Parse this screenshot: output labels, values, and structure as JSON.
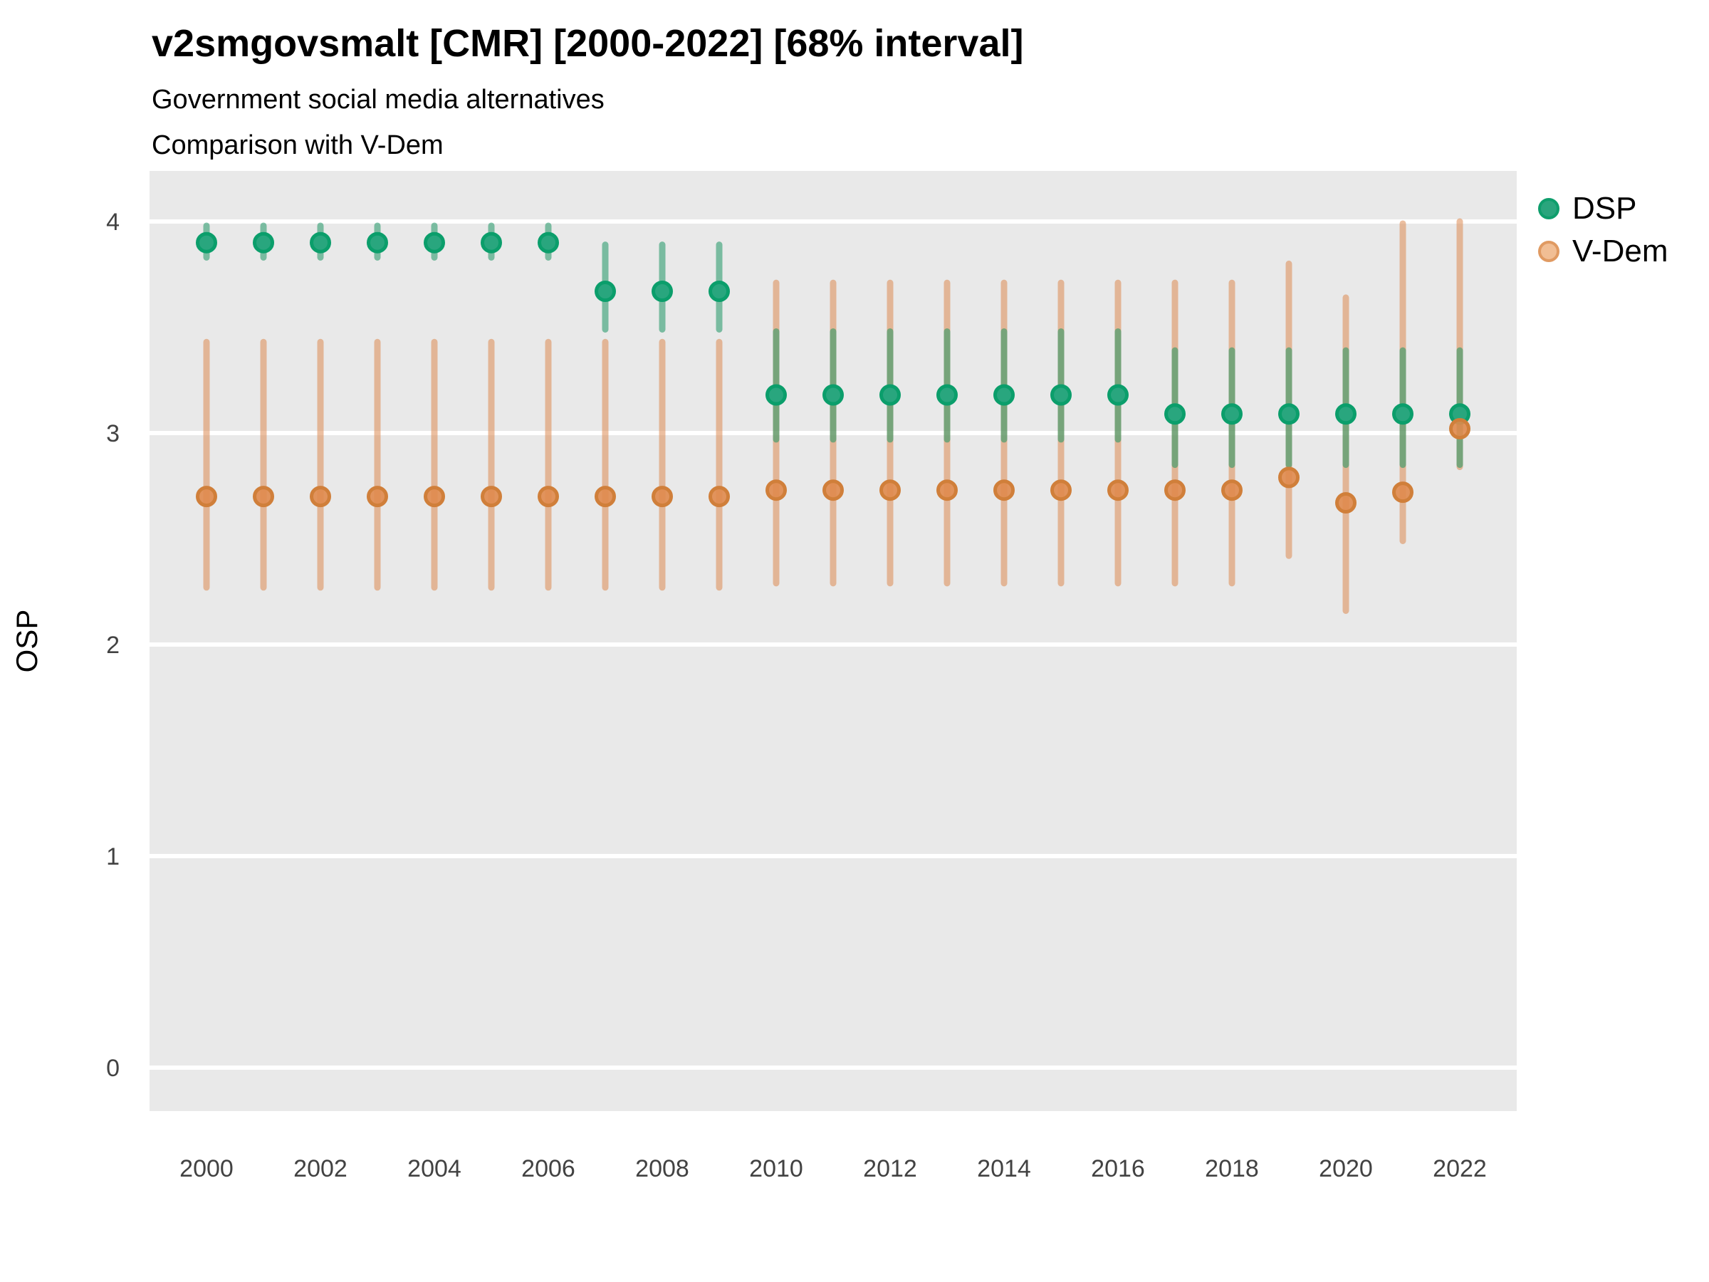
{
  "title": "v2smgovsmalt [CMR] [2000-2022] [68% interval]",
  "subtitle1": "Government social media alternatives",
  "subtitle2": "Comparison with V-Dem",
  "axes": {
    "y_label": "OSP",
    "y_ticks": [
      "0",
      "1",
      "2",
      "3",
      "4"
    ],
    "x_ticks": [
      "2000",
      "2002",
      "2004",
      "2006",
      "2008",
      "2010",
      "2012",
      "2014",
      "2016",
      "2018",
      "2020",
      "2022"
    ]
  },
  "legend": {
    "items": [
      {
        "label": "DSP",
        "swatch_fill": "#2AA57D",
        "swatch_border": "#0E9E6C"
      },
      {
        "label": "V-Dem",
        "swatch_fill": "#F1BE94",
        "swatch_border": "#E09A62"
      }
    ]
  },
  "colors": {
    "panel_background": "#E9E9E9",
    "gridline": "#FFFFFF",
    "dsp_point_fill": "#29A67E",
    "dsp_point_stroke": "#0B9E6B",
    "dsp_bar": "rgba(30,150,100,0.55)",
    "vdem_point_fill": "rgba(224,138,77,0.9)",
    "vdem_point_stroke": "#D07F3A",
    "vdem_bar": "rgba(221,138,82,0.55)",
    "tick_text": "#424242",
    "title_text": "#000000"
  },
  "chart_data": {
    "type": "pointrange",
    "title": "v2smgovsmalt [CMR] [2000-2022] [68% interval]",
    "subtitle": [
      "Government social media alternatives",
      "Comparison with V-Dem"
    ],
    "xlabel": "",
    "ylabel": "OSP",
    "ylim": [
      -0.2,
      4.2
    ],
    "x": [
      2000,
      2001,
      2002,
      2003,
      2004,
      2005,
      2006,
      2007,
      2008,
      2009,
      2010,
      2011,
      2012,
      2013,
      2014,
      2015,
      2016,
      2017,
      2018,
      2019,
      2020,
      2021,
      2022
    ],
    "interval": "68%",
    "legend_position": "top-right",
    "grid": "horizontal-only",
    "series": [
      {
        "name": "DSP",
        "points": [
          3.9,
          3.9,
          3.9,
          3.9,
          3.9,
          3.9,
          3.9,
          3.67,
          3.67,
          3.67,
          3.18,
          3.18,
          3.18,
          3.18,
          3.18,
          3.18,
          3.18,
          3.09,
          3.09,
          3.09,
          3.09,
          3.09,
          3.09
        ],
        "lo": [
          3.83,
          3.83,
          3.83,
          3.83,
          3.83,
          3.83,
          3.83,
          3.49,
          3.49,
          3.49,
          2.97,
          2.97,
          2.97,
          2.97,
          2.97,
          2.97,
          2.97,
          2.85,
          2.85,
          2.85,
          2.85,
          2.85,
          2.85
        ],
        "hi": [
          3.98,
          3.98,
          3.98,
          3.98,
          3.98,
          3.98,
          3.98,
          3.89,
          3.89,
          3.89,
          3.48,
          3.48,
          3.48,
          3.48,
          3.48,
          3.48,
          3.48,
          3.39,
          3.39,
          3.39,
          3.39,
          3.39,
          3.39
        ]
      },
      {
        "name": "V-Dem",
        "points": [
          2.7,
          2.7,
          2.7,
          2.7,
          2.7,
          2.7,
          2.7,
          2.7,
          2.7,
          2.7,
          2.73,
          2.73,
          2.73,
          2.73,
          2.73,
          2.73,
          2.73,
          2.73,
          2.73,
          2.79,
          2.67,
          2.72,
          3.02
        ],
        "lo": [
          2.27,
          2.27,
          2.27,
          2.27,
          2.27,
          2.27,
          2.27,
          2.27,
          2.27,
          2.27,
          2.29,
          2.29,
          2.29,
          2.29,
          2.29,
          2.29,
          2.29,
          2.29,
          2.29,
          2.42,
          2.16,
          2.49,
          2.84
        ],
        "hi": [
          3.43,
          3.43,
          3.43,
          3.43,
          3.43,
          3.43,
          3.43,
          3.43,
          3.43,
          3.43,
          3.71,
          3.71,
          3.71,
          3.71,
          3.71,
          3.71,
          3.71,
          3.71,
          3.71,
          3.8,
          3.64,
          3.99,
          4.0
        ]
      }
    ]
  }
}
